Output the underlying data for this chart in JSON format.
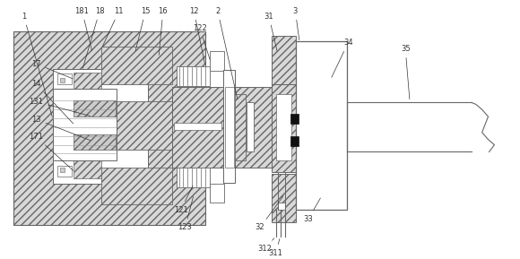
{
  "bg_color": "#ffffff",
  "lc": "#666666",
  "fc_hatch": "#d8d8d8",
  "fc_white": "#ffffff",
  "figsize": [
    5.8,
    2.89
  ],
  "dpi": 100
}
